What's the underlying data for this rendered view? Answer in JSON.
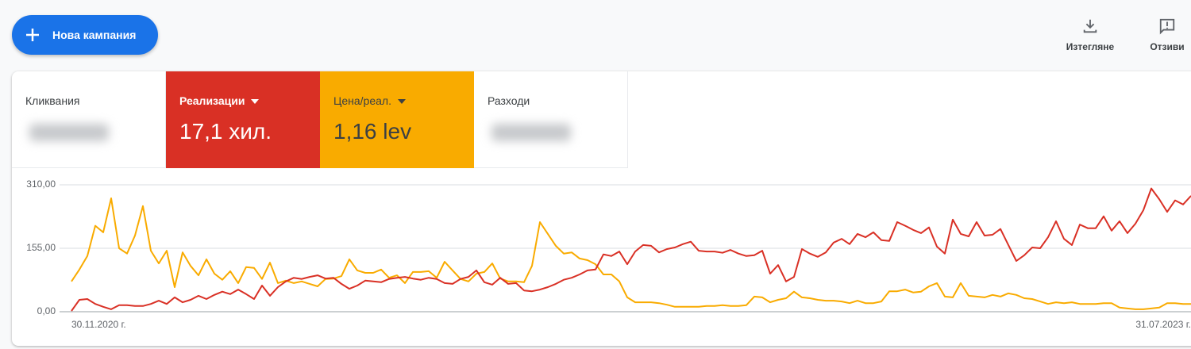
{
  "toolbar": {
    "new_campaign": "Нова кампания",
    "download": "Изтегляне",
    "feedback": "Отзиви"
  },
  "metrics": [
    {
      "label": "Кликвания"
    },
    {
      "value": "17,1 хил."
    },
    {
      "value": "1,16 lev"
    },
    {
      "label": "Разходи"
    }
  ],
  "chart_data": {
    "type": "line",
    "categories": [
      "30.11.2020 г.",
      null,
      null,
      null,
      null,
      null,
      null,
      null,
      null,
      null,
      null,
      null,
      null,
      null,
      null,
      null,
      null,
      null,
      null,
      null,
      null,
      null,
      null,
      null,
      null,
      null,
      null,
      null,
      null,
      null,
      null,
      null,
      null,
      null,
      null,
      null,
      null,
      null,
      null,
      null,
      null,
      null,
      null,
      null,
      null,
      null,
      null,
      null,
      null,
      null,
      null,
      null,
      null,
      null,
      null,
      null,
      null,
      null,
      null,
      null,
      null,
      null,
      null,
      null,
      null,
      null,
      null,
      null,
      null,
      null,
      null,
      null,
      null,
      null,
      null,
      null,
      null,
      null,
      null,
      null,
      null,
      null,
      null,
      null,
      null,
      null,
      null,
      null,
      null,
      null,
      null,
      null,
      null,
      null,
      null,
      null,
      null,
      null,
      null,
      null,
      null,
      null,
      null,
      null,
      null,
      null,
      null,
      null,
      null,
      null,
      null,
      null,
      null,
      null,
      null,
      null,
      null,
      null,
      null,
      null,
      null,
      null,
      null,
      null,
      null,
      null,
      null,
      null,
      null,
      null,
      null,
      null,
      null,
      null,
      null,
      null,
      null,
      null,
      null,
      null,
      null,
      "31.07.2023 г."
    ],
    "series": [
      {
        "name": "Реализации",
        "color": "#d93025",
        "values": [
          2,
          29,
          31,
          19,
          12,
          6,
          16,
          16,
          14,
          14,
          19,
          27,
          19,
          35,
          23,
          29,
          39,
          31,
          41,
          49,
          43,
          54,
          43,
          31,
          64,
          39,
          60,
          74,
          83,
          80,
          85,
          89,
          81,
          83,
          68,
          56,
          64,
          76,
          74,
          72,
          80,
          83,
          85,
          81,
          78,
          83,
          80,
          70,
          68,
          80,
          85,
          101,
          72,
          66,
          83,
          68,
          70,
          52,
          50,
          54,
          60,
          68,
          78,
          83,
          91,
          101,
          103,
          140,
          136,
          147,
          116,
          147,
          163,
          161,
          145,
          153,
          157,
          165,
          171,
          149,
          147,
          147,
          144,
          151,
          142,
          136,
          138,
          149,
          93,
          114,
          74,
          85,
          153,
          142,
          134,
          145,
          169,
          178,
          165,
          190,
          182,
          194,
          175,
          173,
          219,
          210,
          200,
          192,
          206,
          159,
          142,
          225,
          190,
          184,
          219,
          186,
          188,
          202,
          163,
          124,
          138,
          157,
          155,
          182,
          221,
          178,
          163,
          213,
          204,
          204,
          233,
          198,
          221,
          192,
          215,
          248,
          301,
          275,
          244,
          272,
          262,
          283
        ]
      },
      {
        "name": "Цена/реал.",
        "color": "#f9ab00",
        "values": [
          74,
          103,
          136,
          210,
          194,
          277,
          155,
          142,
          186,
          258,
          149,
          118,
          149,
          60,
          145,
          112,
          89,
          128,
          93,
          78,
          99,
          70,
          109,
          107,
          80,
          120,
          70,
          76,
          70,
          74,
          68,
          62,
          80,
          81,
          87,
          128,
          101,
          95,
          95,
          103,
          83,
          89,
          70,
          97,
          97,
          99,
          83,
          122,
          101,
          80,
          74,
          93,
          97,
          118,
          81,
          74,
          74,
          72,
          112,
          219,
          190,
          161,
          142,
          145,
          130,
          126,
          116,
          91,
          91,
          74,
          35,
          23,
          23,
          23,
          21,
          17,
          12,
          12,
          12,
          12,
          14,
          14,
          16,
          14,
          14,
          16,
          37,
          35,
          23,
          29,
          33,
          49,
          35,
          33,
          29,
          27,
          27,
          25,
          21,
          27,
          21,
          21,
          25,
          50,
          50,
          54,
          47,
          49,
          62,
          70,
          37,
          35,
          70,
          39,
          37,
          35,
          41,
          37,
          45,
          41,
          33,
          31,
          25,
          19,
          23,
          21,
          23,
          19,
          19,
          19,
          21,
          21,
          10,
          8,
          6,
          6,
          8,
          10,
          21,
          21,
          19,
          19
        ]
      }
    ],
    "ylim": [
      0,
      310
    ],
    "yticks": [
      {
        "value": 0,
        "label": "0,00"
      },
      {
        "value": 155,
        "label": "155,00"
      },
      {
        "value": 310,
        "label": "310,00"
      }
    ],
    "grid": true
  }
}
